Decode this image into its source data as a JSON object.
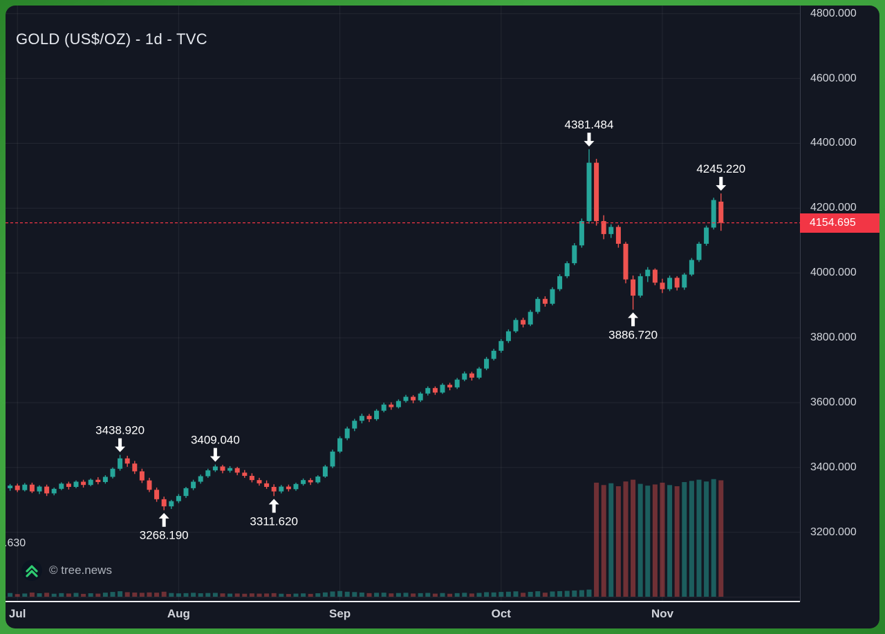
{
  "meta": {
    "title": "GOLD (US$/OZ) - 1d - TVC",
    "watermark": "© tree.news",
    "partial_left_label": ".630"
  },
  "colors": {
    "background": "#131722",
    "frame_green": "#3b9e3b",
    "up": "#26a69a",
    "down": "#ef5350",
    "grid": "rgba(255,255,255,0.07)",
    "axis_text": "#d2d5dc",
    "price_line": "#f23645",
    "price_label_bg": "#f23645",
    "vol_up": "rgba(38,166,154,0.5)",
    "vol_down": "rgba(239,83,80,0.42)",
    "annotation_text": "#ffffff",
    "axis_separator": "#eeeef2"
  },
  "chart_data": {
    "type": "candlestick",
    "symbol": "GOLD (US$/OZ)",
    "interval": "1d",
    "exchange": "TVC",
    "last_price": 4154.695,
    "last_price_label": "4154.695",
    "y_axis": {
      "ticks": [
        {
          "label": "4800.000",
          "value": 4800
        },
        {
          "label": "4600.000",
          "value": 4600
        },
        {
          "label": "4400.000",
          "value": 4400
        },
        {
          "label": "4200.000",
          "value": 4200
        },
        {
          "label": "4000.000",
          "value": 4000
        },
        {
          "label": "3800.000",
          "value": 3800
        },
        {
          "label": "3600.000",
          "value": 3600
        },
        {
          "label": "3400.000",
          "value": 3400
        },
        {
          "label": "3200.000",
          "value": 3200
        }
      ],
      "gridlines": [
        4800,
        4600,
        4400,
        4200,
        4000,
        3800,
        3600,
        3400,
        3200,
        3000
      ]
    },
    "x_axis": {
      "months": [
        {
          "label": "Jul",
          "candle_index": 2
        },
        {
          "label": "Aug",
          "candle_index": 24
        },
        {
          "label": "Sep",
          "candle_index": 46
        },
        {
          "label": "Oct",
          "candle_index": 68
        },
        {
          "label": "Nov",
          "candle_index": 90
        }
      ]
    },
    "annotations": [
      {
        "text": "3438.920",
        "candle_index": 16,
        "kind": "high"
      },
      {
        "text": "3268.190",
        "candle_index": 22,
        "kind": "low"
      },
      {
        "text": "3409.040",
        "candle_index": 29,
        "kind": "high"
      },
      {
        "text": "3311.620",
        "candle_index": 37,
        "kind": "low"
      },
      {
        "text": "4381.484",
        "candle_index": 80,
        "kind": "high"
      },
      {
        "text": "3886.720",
        "candle_index": 86,
        "kind": "low"
      },
      {
        "text": "4245.220",
        "candle_index": 98,
        "kind": "high"
      }
    ],
    "columns": [
      "open",
      "high",
      "low",
      "close",
      "volume"
    ],
    "candles": [
      [
        3330,
        3342,
        3319,
        3336,
        26
      ],
      [
        3336,
        3349,
        3328,
        3344,
        31
      ],
      [
        3344,
        3350,
        3324,
        3330,
        22
      ],
      [
        3330,
        3352,
        3326,
        3347,
        27
      ],
      [
        3347,
        3353,
        3321,
        3326,
        35
      ],
      [
        3326,
        3345,
        3318,
        3341,
        29
      ],
      [
        3341,
        3347,
        3312,
        3320,
        33
      ],
      [
        3320,
        3338,
        3314,
        3334,
        25
      ],
      [
        3334,
        3354,
        3330,
        3350,
        30
      ],
      [
        3350,
        3356,
        3332,
        3340,
        27
      ],
      [
        3340,
        3360,
        3336,
        3356,
        32
      ],
      [
        3356,
        3362,
        3338,
        3346,
        24
      ],
      [
        3346,
        3366,
        3342,
        3362,
        29
      ],
      [
        3362,
        3370,
        3348,
        3355,
        26
      ],
      [
        3355,
        3376,
        3350,
        3371,
        34
      ],
      [
        3371,
        3400,
        3366,
        3396,
        40
      ],
      [
        3396,
        3438.92,
        3390,
        3428,
        46
      ],
      [
        3428,
        3436,
        3402,
        3412,
        38
      ],
      [
        3412,
        3420,
        3380,
        3388,
        35
      ],
      [
        3388,
        3396,
        3352,
        3360,
        33
      ],
      [
        3360,
        3368,
        3324,
        3331,
        36
      ],
      [
        3331,
        3338,
        3294,
        3302,
        34
      ],
      [
        3302,
        3310,
        3268.19,
        3280,
        42
      ],
      [
        3280,
        3300,
        3272,
        3296,
        31
      ],
      [
        3296,
        3318,
        3290,
        3312,
        28
      ],
      [
        3312,
        3340,
        3306,
        3336,
        30
      ],
      [
        3336,
        3362,
        3330,
        3356,
        33
      ],
      [
        3356,
        3378,
        3350,
        3373,
        29
      ],
      [
        3373,
        3396,
        3368,
        3391,
        31
      ],
      [
        3391,
        3409.04,
        3386,
        3403,
        32
      ],
      [
        3403,
        3408,
        3382,
        3390,
        28
      ],
      [
        3390,
        3404,
        3384,
        3398,
        26
      ],
      [
        3398,
        3402,
        3376,
        3384,
        27
      ],
      [
        3384,
        3392,
        3368,
        3374,
        25
      ],
      [
        3374,
        3382,
        3354,
        3361,
        28
      ],
      [
        3361,
        3368,
        3344,
        3351,
        26
      ],
      [
        3351,
        3360,
        3334,
        3340,
        27
      ],
      [
        3340,
        3348,
        3311.62,
        3326,
        30
      ],
      [
        3326,
        3346,
        3320,
        3341,
        25
      ],
      [
        3341,
        3347,
        3326,
        3333,
        23
      ],
      [
        3333,
        3353,
        3328,
        3349,
        26
      ],
      [
        3349,
        3366,
        3344,
        3361,
        28
      ],
      [
        3361,
        3367,
        3346,
        3354,
        24
      ],
      [
        3354,
        3376,
        3350,
        3372,
        29
      ],
      [
        3372,
        3408,
        3368,
        3403,
        36
      ],
      [
        3403,
        3455,
        3398,
        3449,
        44
      ],
      [
        3449,
        3496,
        3444,
        3490,
        48
      ],
      [
        3490,
        3526,
        3484,
        3520,
        42
      ],
      [
        3520,
        3550,
        3512,
        3544,
        39
      ],
      [
        3544,
        3566,
        3536,
        3559,
        35
      ],
      [
        3559,
        3565,
        3540,
        3549,
        30
      ],
      [
        3549,
        3580,
        3544,
        3575,
        33
      ],
      [
        3575,
        3600,
        3570,
        3594,
        34
      ],
      [
        3594,
        3601,
        3578,
        3586,
        28
      ],
      [
        3586,
        3610,
        3582,
        3605,
        31
      ],
      [
        3605,
        3624,
        3600,
        3618,
        33
      ],
      [
        3618,
        3623,
        3598,
        3607,
        27
      ],
      [
        3607,
        3633,
        3602,
        3628,
        30
      ],
      [
        3628,
        3650,
        3622,
        3645,
        32
      ],
      [
        3645,
        3650,
        3624,
        3631,
        26
      ],
      [
        3631,
        3660,
        3627,
        3655,
        31
      ],
      [
        3655,
        3661,
        3638,
        3647,
        25
      ],
      [
        3647,
        3676,
        3642,
        3671,
        30
      ],
      [
        3671,
        3696,
        3666,
        3690,
        33
      ],
      [
        3690,
        3695,
        3668,
        3677,
        27
      ],
      [
        3677,
        3710,
        3672,
        3705,
        32
      ],
      [
        3705,
        3741,
        3700,
        3735,
        38
      ],
      [
        3735,
        3766,
        3730,
        3760,
        36
      ],
      [
        3760,
        3796,
        3754,
        3790,
        40
      ],
      [
        3790,
        3826,
        3784,
        3820,
        42
      ],
      [
        3820,
        3861,
        3815,
        3855,
        45
      ],
      [
        3855,
        3862,
        3832,
        3841,
        33
      ],
      [
        3841,
        3886,
        3836,
        3880,
        41
      ],
      [
        3880,
        3926,
        3874,
        3920,
        46
      ],
      [
        3920,
        3928,
        3896,
        3905,
        34
      ],
      [
        3905,
        3956,
        3900,
        3950,
        44
      ],
      [
        3950,
        3996,
        3944,
        3990,
        47
      ],
      [
        3990,
        4036,
        3984,
        4030,
        49
      ],
      [
        4030,
        4092,
        4024,
        4085,
        52
      ],
      [
        4085,
        4168,
        4078,
        4160,
        55
      ],
      [
        4160,
        4381.484,
        4152,
        4340,
        60
      ],
      [
        4340,
        4352,
        4146,
        4160,
        960
      ],
      [
        4160,
        4178,
        4104,
        4120,
        940
      ],
      [
        4120,
        4150,
        4108,
        4142,
        955
      ],
      [
        4142,
        4148,
        4078,
        4090,
        930
      ],
      [
        4090,
        4096,
        3968,
        3980,
        970
      ],
      [
        3980,
        3992,
        3886.72,
        3930,
        985
      ],
      [
        3930,
        3998,
        3924,
        3990,
        950
      ],
      [
        3990,
        4018,
        3972,
        4010,
        935
      ],
      [
        4010,
        4014,
        3962,
        3970,
        945
      ],
      [
        3970,
        3982,
        3938,
        3950,
        960
      ],
      [
        3950,
        3992,
        3944,
        3985,
        940
      ],
      [
        3985,
        3990,
        3946,
        3955,
        930
      ],
      [
        3955,
        4000,
        3948,
        3995,
        965
      ],
      [
        3995,
        4046,
        3990,
        4040,
        975
      ],
      [
        4040,
        4096,
        4034,
        4090,
        985
      ],
      [
        4090,
        4146,
        4084,
        4140,
        970
      ],
      [
        4140,
        4232,
        4134,
        4225,
        990
      ],
      [
        4220,
        4245.22,
        4130,
        4154.695,
        980
      ]
    ]
  }
}
